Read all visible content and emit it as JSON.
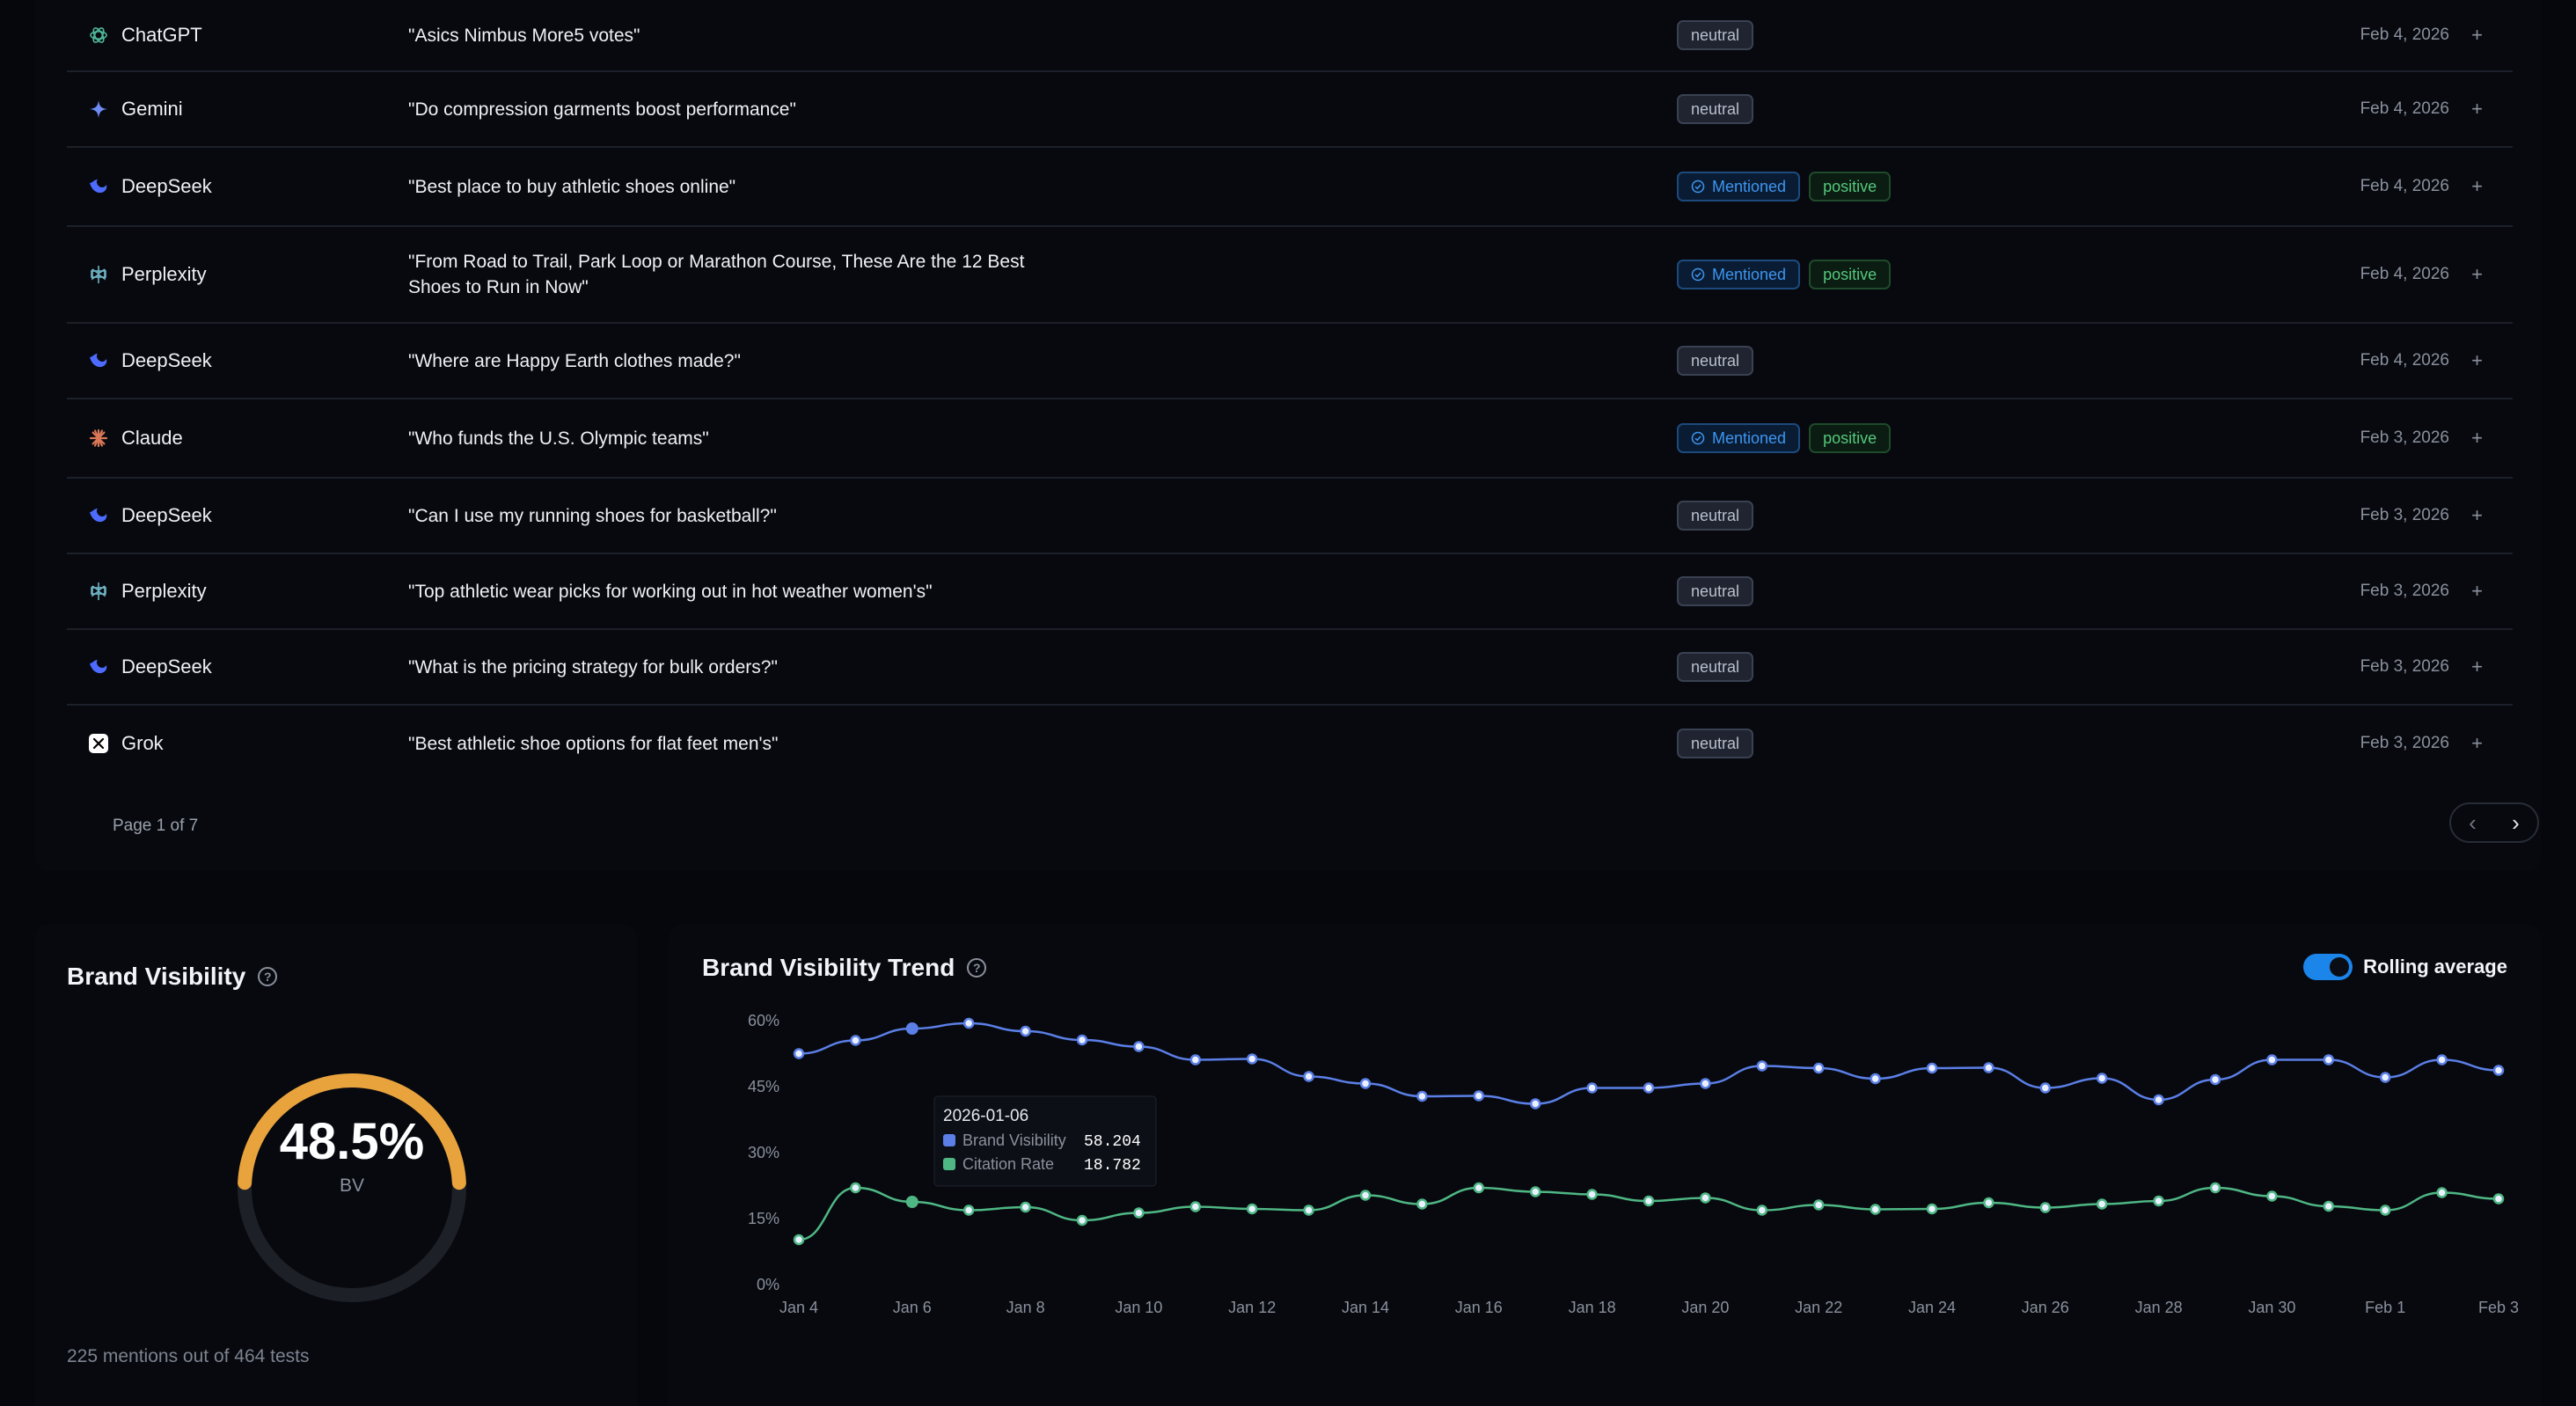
{
  "rows": [
    {
      "model": "ChatGPT",
      "icon": "chatgpt-icon",
      "query": "\"Asics Nimbus More5 votes\"",
      "badges": [
        {
          "type": "neutral",
          "label": "neutral"
        }
      ],
      "date": "Feb 4, 2026"
    },
    {
      "model": "Gemini",
      "icon": "gemini-icon",
      "query": "\"Do compression garments boost performance\"",
      "badges": [
        {
          "type": "neutral",
          "label": "neutral"
        }
      ],
      "date": "Feb 4, 2026"
    },
    {
      "model": "DeepSeek",
      "icon": "deepseek-icon",
      "query": "\"Best place to buy athletic shoes online\"",
      "badges": [
        {
          "type": "mentioned",
          "label": "Mentioned"
        },
        {
          "type": "positive",
          "label": "positive"
        }
      ],
      "date": "Feb 4, 2026"
    },
    {
      "model": "Perplexity",
      "icon": "perplexity-icon",
      "query": "\"From Road to Trail, Park Loop or Marathon Course, These Are the 12 Best Shoes to Run in Now\"",
      "badges": [
        {
          "type": "mentioned",
          "label": "Mentioned"
        },
        {
          "type": "positive",
          "label": "positive"
        }
      ],
      "date": "Feb 4, 2026"
    },
    {
      "model": "DeepSeek",
      "icon": "deepseek-icon",
      "query": "\"Where are Happy Earth clothes made?\"",
      "badges": [
        {
          "type": "neutral",
          "label": "neutral"
        }
      ],
      "date": "Feb 4, 2026"
    },
    {
      "model": "Claude",
      "icon": "claude-icon",
      "query": "\"Who funds the U.S. Olympic teams\"",
      "badges": [
        {
          "type": "mentioned",
          "label": "Mentioned"
        },
        {
          "type": "positive",
          "label": "positive"
        }
      ],
      "date": "Feb 3, 2026"
    },
    {
      "model": "DeepSeek",
      "icon": "deepseek-icon",
      "query": "\"Can I use my running shoes for basketball?\"",
      "badges": [
        {
          "type": "neutral",
          "label": "neutral"
        }
      ],
      "date": "Feb 3, 2026"
    },
    {
      "model": "Perplexity",
      "icon": "perplexity-icon",
      "query": "\"Top athletic wear picks for working out in hot weather women's\"",
      "badges": [
        {
          "type": "neutral",
          "label": "neutral"
        }
      ],
      "date": "Feb 3, 2026"
    },
    {
      "model": "DeepSeek",
      "icon": "deepseek-icon",
      "query": "\"What is the pricing strategy for bulk orders?\"",
      "badges": [
        {
          "type": "neutral",
          "label": "neutral"
        }
      ],
      "date": "Feb 3, 2026"
    },
    {
      "model": "Grok",
      "icon": "grok-icon",
      "query": "\"Best athletic shoe options for flat feet men's\"",
      "badges": [
        {
          "type": "neutral",
          "label": "neutral"
        }
      ],
      "date": "Feb 3, 2026"
    }
  ],
  "row_action": "+",
  "pagination": {
    "label": "Page 1 of 7",
    "prev": "‹",
    "next": "›"
  },
  "brand_visibility": {
    "title": "Brand Visibility",
    "help": "?",
    "value_label": "48.5%",
    "value": 48.5,
    "sub_label": "BV",
    "footer": "225 mentions out of 464 tests",
    "gauge_color": "#e8a33d"
  },
  "trend": {
    "title": "Brand Visibility Trend",
    "help": "?",
    "toggle_label": "Rolling average",
    "toggle_on": true
  },
  "chart_data": {
    "type": "line",
    "title": "Brand Visibility Trend",
    "x": [
      "Jan 4",
      "Jan 5",
      "Jan 6",
      "Jan 7",
      "Jan 8",
      "Jan 9",
      "Jan 10",
      "Jan 11",
      "Jan 12",
      "Jan 13",
      "Jan 14",
      "Jan 15",
      "Jan 16",
      "Jan 17",
      "Jan 18",
      "Jan 19",
      "Jan 20",
      "Jan 21",
      "Jan 22",
      "Jan 23",
      "Jan 24",
      "Jan 25",
      "Jan 26",
      "Jan 27",
      "Jan 28",
      "Jan 29",
      "Jan 30",
      "Jan 31",
      "Feb 1",
      "Feb 2",
      "Feb 3"
    ],
    "x_tick_labels": [
      "Jan 4",
      "Jan 6",
      "Jan 8",
      "Jan 10",
      "Jan 12",
      "Jan 14",
      "Jan 16",
      "Jan 18",
      "Jan 20",
      "Jan 22",
      "Jan 24",
      "Jan 26",
      "Jan 28",
      "Jan 30",
      "Feb 1",
      "Feb 3"
    ],
    "y_ticks": [
      "0%",
      "15%",
      "30%",
      "45%",
      "60%"
    ],
    "ylim": [
      0,
      60
    ],
    "series": [
      {
        "name": "Brand Visibility",
        "color": "#5b7fe6",
        "values": [
          52.5,
          55.5,
          58.2,
          59.4,
          57.6,
          55.6,
          54.1,
          51.1,
          51.3,
          47.3,
          45.7,
          42.8,
          42.9,
          41.1,
          44.7,
          44.7,
          45.7,
          49.7,
          49.2,
          46.8,
          49.2,
          49.3,
          44.7,
          46.9,
          42.0,
          46.6,
          51.1,
          51.1,
          47.1,
          51.1,
          48.7
        ]
      },
      {
        "name": "Citation Rate",
        "color": "#4fb784",
        "values": [
          10.2,
          22.0,
          18.8,
          16.9,
          17.6,
          14.6,
          16.3,
          17.7,
          17.2,
          16.9,
          20.3,
          18.3,
          22.0,
          21.1,
          20.5,
          19.0,
          19.7,
          16.9,
          18.1,
          17.1,
          17.2,
          18.6,
          17.5,
          18.3,
          19.0,
          22.0,
          20.1,
          17.8,
          16.9,
          20.9,
          19.5
        ]
      }
    ],
    "tooltip": {
      "date": "2026-01-06",
      "items": [
        {
          "name": "Brand Visibility",
          "value": "58.204",
          "color": "#5b7fe6"
        },
        {
          "name": "Citation Rate",
          "value": "18.782",
          "color": "#4fb784"
        }
      ]
    },
    "grid": false
  }
}
